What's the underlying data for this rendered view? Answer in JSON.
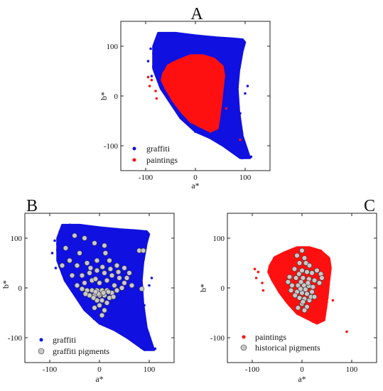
{
  "chart_data": [
    {
      "panel": "A",
      "type": "scatter",
      "xlabel": "a*",
      "ylabel": "b*",
      "xlim": [
        -150,
        150
      ],
      "ylim": [
        -150,
        150
      ],
      "xticks": [
        -100,
        0,
        100
      ],
      "yticks": [
        -100,
        0,
        100
      ],
      "legend_position": "bottom-left",
      "series": [
        {
          "name": "graffiti",
          "color": "#1010e0",
          "region": [
            [
              -85,
              100
            ],
            [
              -75,
              127
            ],
            [
              -40,
              127
            ],
            [
              0,
              122
            ],
            [
              40,
              118
            ],
            [
              70,
              116
            ],
            [
              95,
              114
            ],
            [
              100,
              108
            ],
            [
              95,
              90
            ],
            [
              88,
              50
            ],
            [
              85,
              15
            ],
            [
              88,
              -30
            ],
            [
              95,
              -80
            ],
            [
              110,
              -125
            ],
            [
              90,
              -125
            ],
            [
              55,
              -100
            ],
            [
              30,
              -85
            ],
            [
              0,
              -72
            ],
            [
              -30,
              -45
            ],
            [
              -50,
              -15
            ],
            [
              -70,
              15
            ],
            [
              -85,
              55
            ]
          ],
          "outliers": [
            [
              -90,
              95
            ],
            [
              -95,
              70
            ],
            [
              -88,
              40
            ],
            [
              105,
              20
            ],
            [
              100,
              5
            ],
            [
              90,
              -35
            ],
            [
              112,
              -122
            ]
          ]
        },
        {
          "name": "paintings",
          "color": "#ff1010",
          "region": [
            [
              -65,
              45
            ],
            [
              -55,
              62
            ],
            [
              -35,
              72
            ],
            [
              -10,
              82
            ],
            [
              15,
              82
            ],
            [
              38,
              75
            ],
            [
              55,
              60
            ],
            [
              58,
              40
            ],
            [
              55,
              15
            ],
            [
              52,
              -15
            ],
            [
              48,
              -45
            ],
            [
              45,
              -65
            ],
            [
              30,
              -72
            ],
            [
              10,
              -62
            ],
            [
              -10,
              -52
            ],
            [
              -30,
              -30
            ],
            [
              -45,
              -10
            ],
            [
              -60,
              15
            ],
            [
              -68,
              32
            ]
          ],
          "outliers": [
            [
              -95,
              38
            ],
            [
              -88,
              32
            ],
            [
              -92,
              20
            ],
            [
              -80,
              10
            ],
            [
              90,
              -88
            ],
            [
              -78,
              -5
            ],
            [
              62,
              -25
            ]
          ]
        }
      ]
    },
    {
      "panel": "B",
      "type": "scatter",
      "xlabel": "a*",
      "ylabel": "b*",
      "xlim": [
        -150,
        150
      ],
      "ylim": [
        -150,
        150
      ],
      "xticks": [
        -100,
        0,
        100
      ],
      "yticks": [
        -100,
        0,
        100
      ],
      "legend_position": "bottom-left",
      "series": [
        {
          "name": "graffiti",
          "color": "#1010e0",
          "region": [
            [
              -85,
              100
            ],
            [
              -75,
              127
            ],
            [
              -40,
              127
            ],
            [
              0,
              122
            ],
            [
              40,
              118
            ],
            [
              70,
              116
            ],
            [
              95,
              114
            ],
            [
              100,
              108
            ],
            [
              95,
              90
            ],
            [
              88,
              50
            ],
            [
              85,
              15
            ],
            [
              88,
              -30
            ],
            [
              95,
              -80
            ],
            [
              110,
              -125
            ],
            [
              90,
              -125
            ],
            [
              55,
              -100
            ],
            [
              30,
              -85
            ],
            [
              0,
              -72
            ],
            [
              -30,
              -45
            ],
            [
              -50,
              -15
            ],
            [
              -70,
              15
            ],
            [
              -85,
              55
            ]
          ],
          "outliers": [
            [
              -90,
              95
            ],
            [
              -95,
              70
            ],
            [
              -88,
              40
            ],
            [
              105,
              20
            ],
            [
              100,
              5
            ],
            [
              90,
              -35
            ],
            [
              112,
              -122
            ]
          ]
        },
        {
          "name": "graffiti pigments",
          "color": "#c8c8c8",
          "points": [
            [
              -68,
              80
            ],
            [
              -50,
              105
            ],
            [
              -30,
              100
            ],
            [
              -10,
              90
            ],
            [
              10,
              85
            ],
            [
              12,
              70
            ],
            [
              -40,
              70
            ],
            [
              -60,
              55
            ],
            [
              -75,
              45
            ],
            [
              -45,
              45
            ],
            [
              -25,
              50
            ],
            [
              -5,
              55
            ],
            [
              20,
              55
            ],
            [
              35,
              45
            ],
            [
              50,
              40
            ],
            [
              60,
              30
            ],
            [
              -55,
              25
            ],
            [
              -35,
              25
            ],
            [
              -20,
              30
            ],
            [
              -5,
              35
            ],
            [
              10,
              30
            ],
            [
              25,
              25
            ],
            [
              40,
              20
            ],
            [
              50,
              10
            ],
            [
              65,
              5
            ],
            [
              -45,
              5
            ],
            [
              -30,
              10
            ],
            [
              -15,
              15
            ],
            [
              0,
              10
            ],
            [
              15,
              15
            ],
            [
              30,
              5
            ],
            [
              -25,
              -5
            ],
            [
              -15,
              -5
            ],
            [
              -5,
              -5
            ],
            [
              5,
              -5
            ],
            [
              15,
              -5
            ],
            [
              25,
              -10
            ],
            [
              -20,
              -15
            ],
            [
              -10,
              -15
            ],
            [
              0,
              -15
            ],
            [
              10,
              -15
            ],
            [
              20,
              -20
            ],
            [
              -5,
              -25
            ],
            [
              5,
              -25
            ],
            [
              15,
              -30
            ],
            [
              0,
              -35
            ],
            [
              -10,
              -40
            ],
            [
              10,
              -45
            ],
            [
              5,
              -55
            ],
            [
              -2,
              -12
            ],
            [
              -8,
              -8
            ],
            [
              8,
              -10
            ],
            [
              -12,
              -20
            ],
            [
              18,
              -8
            ],
            [
              28,
              -18
            ],
            [
              -28,
              -12
            ],
            [
              35,
              -5
            ],
            [
              -35,
              -2
            ],
            [
              45,
              0
            ],
            [
              55,
              20
            ],
            [
              80,
              75
            ],
            [
              88,
              75
            ],
            [
              85,
              -2
            ],
            [
              -8,
              18
            ],
            [
              6,
              42
            ],
            [
              -18,
              40
            ],
            [
              22,
              38
            ],
            [
              38,
              32
            ]
          ]
        }
      ]
    },
    {
      "panel": "C",
      "type": "scatter",
      "xlabel": "a*",
      "ylabel": "b*",
      "xlim": [
        -150,
        150
      ],
      "ylim": [
        -150,
        150
      ],
      "xticks": [
        -100,
        0,
        100
      ],
      "yticks": [
        -100,
        0,
        100
      ],
      "legend_position": "bottom-left",
      "series": [
        {
          "name": "paintings",
          "color": "#ff1010",
          "region": [
            [
              -65,
              45
            ],
            [
              -55,
              62
            ],
            [
              -35,
              72
            ],
            [
              -10,
              82
            ],
            [
              15,
              82
            ],
            [
              38,
              75
            ],
            [
              55,
              60
            ],
            [
              58,
              40
            ],
            [
              55,
              15
            ],
            [
              52,
              -15
            ],
            [
              48,
              -45
            ],
            [
              45,
              -65
            ],
            [
              30,
              -72
            ],
            [
              10,
              -62
            ],
            [
              -10,
              -52
            ],
            [
              -30,
              -30
            ],
            [
              -45,
              -10
            ],
            [
              -60,
              15
            ],
            [
              -68,
              32
            ]
          ],
          "outliers": [
            [
              -95,
              38
            ],
            [
              -88,
              32
            ],
            [
              -92,
              20
            ],
            [
              -80,
              10
            ],
            [
              90,
              -88
            ],
            [
              -78,
              -5
            ],
            [
              62,
              -25
            ]
          ]
        },
        {
          "name": "historical pigments",
          "color": "#c8c8c8",
          "points": [
            [
              -10,
              65
            ],
            [
              0,
              75
            ],
            [
              5,
              60
            ],
            [
              8,
              50
            ],
            [
              -5,
              50
            ],
            [
              15,
              45
            ],
            [
              -15,
              38
            ],
            [
              0,
              35
            ],
            [
              10,
              32
            ],
            [
              20,
              30
            ],
            [
              30,
              35
            ],
            [
              38,
              28
            ],
            [
              -25,
              22
            ],
            [
              -12,
              20
            ],
            [
              2,
              20
            ],
            [
              14,
              18
            ],
            [
              25,
              15
            ],
            [
              -20,
              5
            ],
            [
              -8,
              5
            ],
            [
              4,
              5
            ],
            [
              14,
              4
            ],
            [
              22,
              2
            ],
            [
              -22,
              -5
            ],
            [
              -10,
              -8
            ],
            [
              0,
              -10
            ],
            [
              10,
              -12
            ],
            [
              20,
              -8
            ],
            [
              -5,
              -20
            ],
            [
              5,
              -22
            ],
            [
              15,
              -25
            ],
            [
              0,
              -32
            ],
            [
              -8,
              -40
            ],
            [
              10,
              -38
            ],
            [
              5,
              -45
            ],
            [
              -3,
              -2
            ],
            [
              7,
              -3
            ],
            [
              -14,
              -15
            ],
            [
              18,
              -18
            ],
            [
              12,
              10
            ],
            [
              -2,
              12
            ],
            [
              25,
              -18
            ],
            [
              -28,
              12
            ],
            [
              35,
              10
            ],
            [
              40,
              20
            ],
            [
              2,
              -28
            ],
            [
              -6,
              28
            ]
          ]
        }
      ]
    }
  ]
}
